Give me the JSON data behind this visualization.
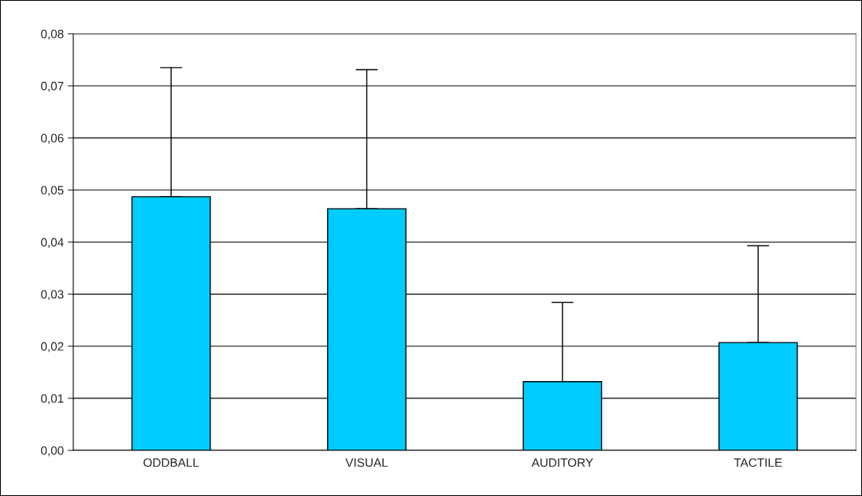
{
  "chart_data": {
    "type": "bar",
    "categories": [
      "ODDBALL",
      "VISUAL",
      "AUDITORY",
      "TACTILE"
    ],
    "values": [
      0.0487,
      0.0464,
      0.0132,
      0.0207
    ],
    "errors": [
      [
        0.0487,
        0.0735
      ],
      [
        0.0464,
        0.0731
      ],
      [
        0.0132,
        0.0284
      ],
      [
        0.0207,
        0.0393
      ]
    ],
    "color": "#00ccff",
    "ylim": [
      0,
      0.08
    ],
    "yticks": [
      {
        "value": 0,
        "label": "0,00"
      },
      {
        "value": 0.01,
        "label": "0,01"
      },
      {
        "value": 0.02,
        "label": "0,02"
      },
      {
        "value": 0.03,
        "label": "0,03"
      },
      {
        "value": 0.04,
        "label": "0,04"
      },
      {
        "value": 0.05,
        "label": "0,05"
      },
      {
        "value": 0.06,
        "label": "0,06"
      },
      {
        "value": 0.07,
        "label": "0,07"
      },
      {
        "value": 0.08,
        "label": "0,08"
      }
    ],
    "grid": "y"
  }
}
